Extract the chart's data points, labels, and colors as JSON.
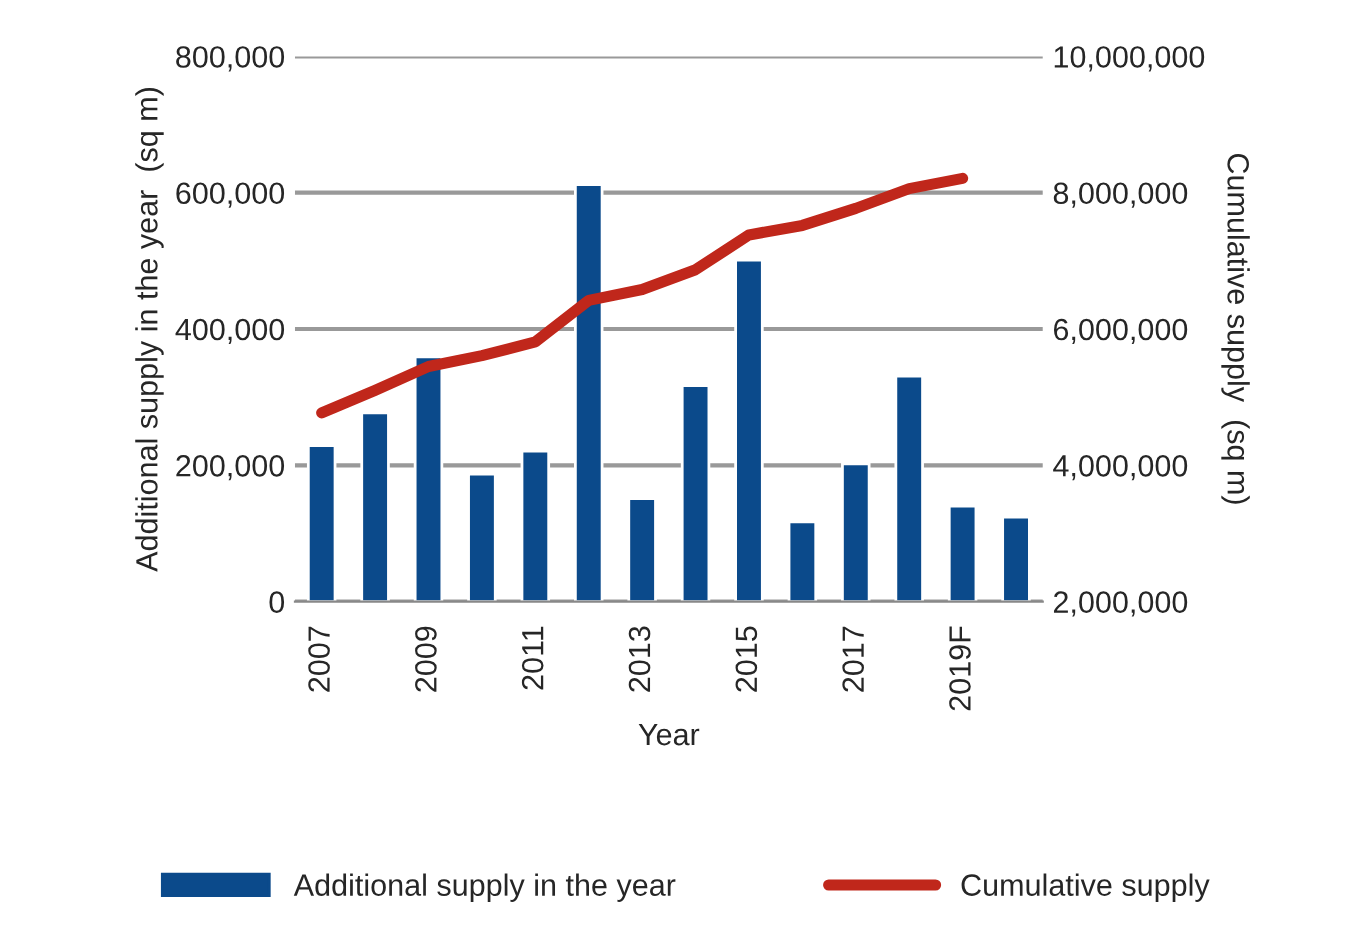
{
  "chart_data": {
    "type": "bar",
    "categories": [
      "2007",
      null,
      "2009",
      null,
      "2011",
      null,
      "2013",
      null,
      "2015",
      null,
      "2017",
      null,
      "2019F",
      null
    ],
    "series": [
      {
        "name": "Additional supply in the year",
        "color": "#0b4a8b",
        "values": [
          229000,
          277000,
          359000,
          187000,
          221000,
          612000,
          151000,
          317000,
          501000,
          117000,
          202000,
          331000,
          140000,
          124000
        ]
      },
      {
        "name": "Cumulative supply",
        "type": "line",
        "axis": "y2",
        "color": "#c0271b",
        "values": [
          4770000,
          5100000,
          5450000,
          5610000,
          5810000,
          6420000,
          6580000,
          6870000,
          7380000,
          7520000,
          7770000,
          8060000,
          8210000,
          null
        ]
      }
    ],
    "xlabel": "Year",
    "ylabel": "Additional supply in the year  (sq m)",
    "y2label": "Cumulative supply  (sq m)",
    "ylim": [
      0,
      800000
    ],
    "yticks": [
      {
        "value": 0,
        "label": "0"
      },
      {
        "value": 200000,
        "label": "200,000"
      },
      {
        "value": 400000,
        "label": "400,000"
      },
      {
        "value": 600000,
        "label": "600,000"
      },
      {
        "value": 800000,
        "label": "800,000"
      }
    ],
    "y2lim": [
      2000000,
      10000000
    ],
    "y2ticks": [
      {
        "value": 2000000,
        "label": "2,000,000"
      },
      {
        "value": 4000000,
        "label": "4,000,000"
      },
      {
        "value": 6000000,
        "label": "6,000,000"
      },
      {
        "value": 8000000,
        "label": "8,000,000"
      },
      {
        "value": 10000000,
        "label": "10,000,000"
      }
    ],
    "grid": "y",
    "legend": "bottom",
    "marker": "none",
    "line_style": "solid"
  }
}
